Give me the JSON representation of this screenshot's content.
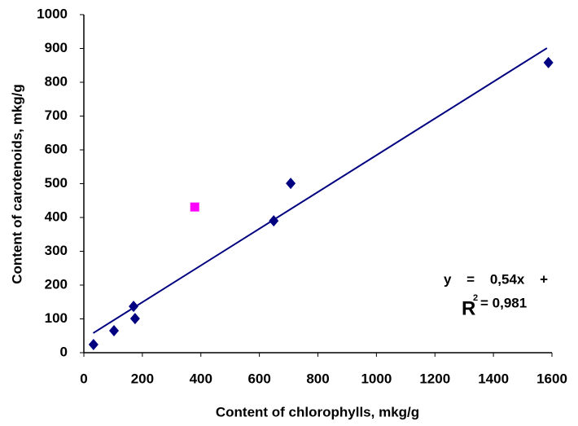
{
  "chart_data": {
    "type": "scatter",
    "xlabel": "Content of chlorophylls, mkg/g",
    "ylabel": "Content of carotenoids, mkg/g",
    "xlim": [
      0,
      1600
    ],
    "ylim": [
      0,
      1000
    ],
    "xticks": [
      0,
      200,
      400,
      600,
      800,
      1000,
      1200,
      1400,
      1600
    ],
    "yticks": [
      0,
      100,
      200,
      300,
      400,
      500,
      600,
      700,
      800,
      900,
      1000
    ],
    "grid": false,
    "series": [
      {
        "color": "#000080",
        "marker": "diamond",
        "x": [
          33,
          103,
          170,
          175,
          649,
          707,
          1588
        ],
        "values": [
          24,
          65,
          137,
          101,
          390,
          501,
          858
        ]
      },
      {
        "color": "#ff00ff",
        "marker": "square",
        "x": [
          379
        ],
        "values": [
          431
        ]
      }
    ],
    "trendline": {
      "color": "#000080",
      "x": [
        32,
        1583
      ],
      "values": [
        58,
        901
      ]
    },
    "annotations": {
      "equation": "y = 0,54x +",
      "r2_base": "R",
      "r2_sup": "2",
      "r2_text": "= 0,981"
    }
  }
}
